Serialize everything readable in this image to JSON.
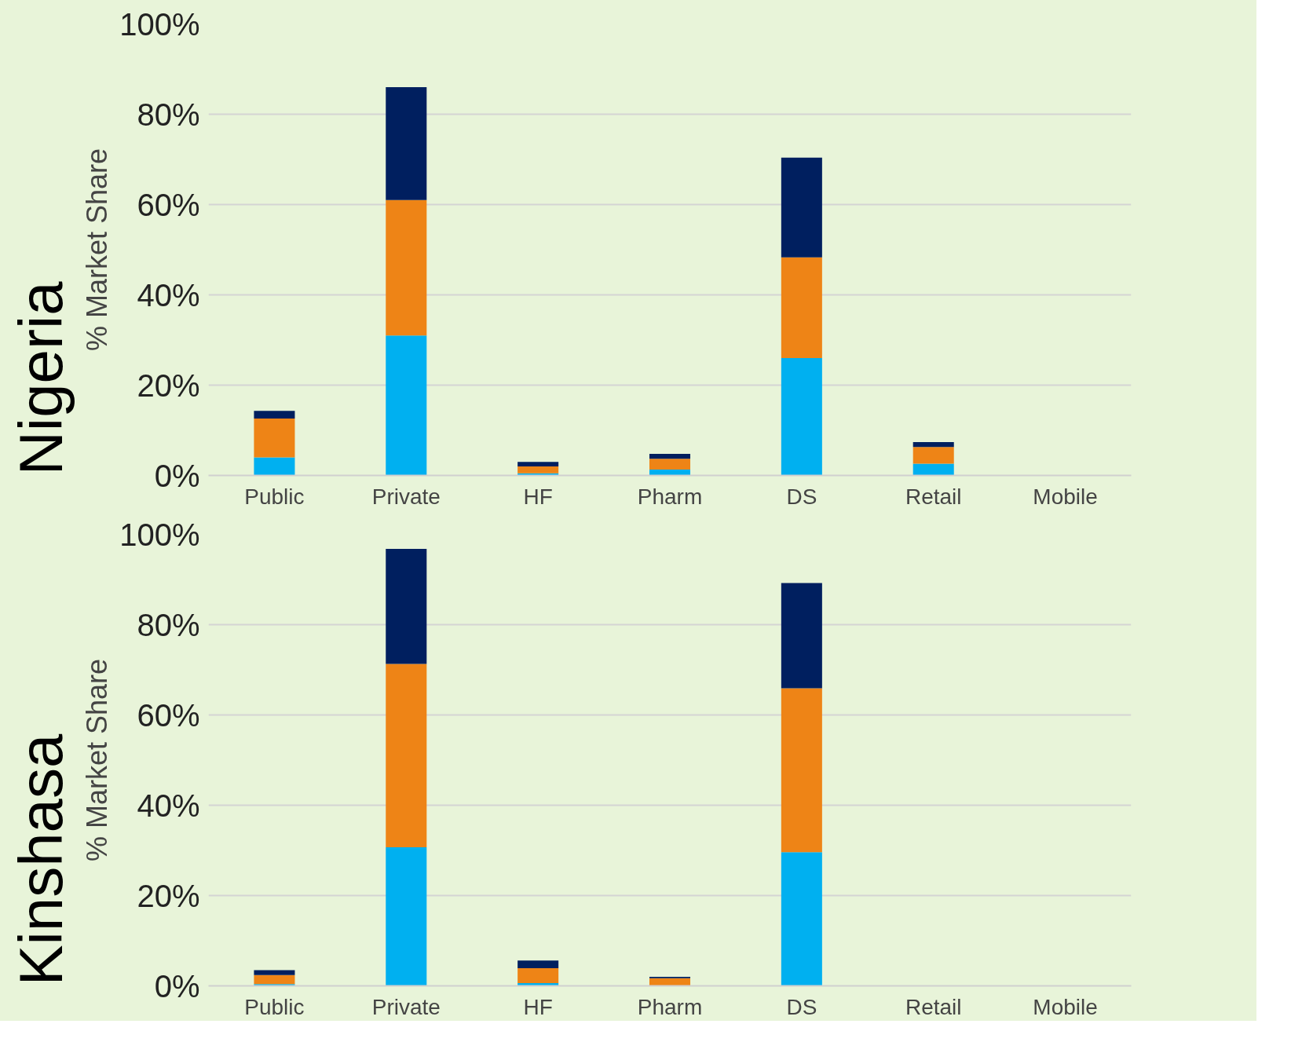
{
  "chart_data": [
    {
      "type": "bar",
      "title": "Nigeria",
      "ylabel": "% Market Share",
      "stacked": true,
      "grid": "y",
      "categories": [
        "Public",
        "Private",
        "HF",
        "Pharm",
        "DS",
        "Retail",
        "Mobile"
      ],
      "series": [
        {
          "color": "#00b0f0",
          "values": [
            4,
            31,
            0.5,
            1.3,
            26,
            2.6,
            0
          ]
        },
        {
          "color": "#ee8416",
          "values": [
            8.6,
            30,
            1.5,
            2.4,
            22.3,
            3.7,
            0
          ]
        },
        {
          "color": "#001f5f",
          "values": [
            1.7,
            25,
            1,
            1.1,
            22.1,
            1.1,
            0
          ]
        }
      ],
      "ylim": [
        0,
        100
      ],
      "yticks": [
        {
          "value": 0,
          "label": "0%"
        },
        {
          "value": 20,
          "label": "20%"
        },
        {
          "value": 40,
          "label": "40%"
        },
        {
          "value": 60,
          "label": "60%"
        },
        {
          "value": 80,
          "label": "80%"
        },
        {
          "value": 100,
          "label": "100%"
        }
      ]
    },
    {
      "type": "bar",
      "title": "Kinshasa",
      "ylabel": "% Market Share",
      "stacked": true,
      "grid": "y",
      "categories": [
        "Public",
        "Private",
        "HF",
        "Pharm",
        "DS",
        "Retail",
        "Mobile"
      ],
      "series": [
        {
          "color": "#00b0f0",
          "values": [
            0.4,
            30.7,
            0.6,
            0,
            29.6,
            0,
            0
          ]
        },
        {
          "color": "#ee8416",
          "values": [
            2,
            40.6,
            3.3,
            1.7,
            36.3,
            0,
            0
          ]
        },
        {
          "color": "#001f5f",
          "values": [
            1.1,
            25.5,
            1.7,
            0.3,
            23.3,
            0,
            0
          ]
        }
      ],
      "ylim": [
        0,
        100
      ],
      "yticks": [
        {
          "value": 0,
          "label": "0%"
        },
        {
          "value": 20,
          "label": "20%"
        },
        {
          "value": 40,
          "label": "40%"
        },
        {
          "value": 60,
          "label": "60%"
        },
        {
          "value": 80,
          "label": "80%"
        },
        {
          "value": 100,
          "label": "100%"
        }
      ]
    }
  ]
}
